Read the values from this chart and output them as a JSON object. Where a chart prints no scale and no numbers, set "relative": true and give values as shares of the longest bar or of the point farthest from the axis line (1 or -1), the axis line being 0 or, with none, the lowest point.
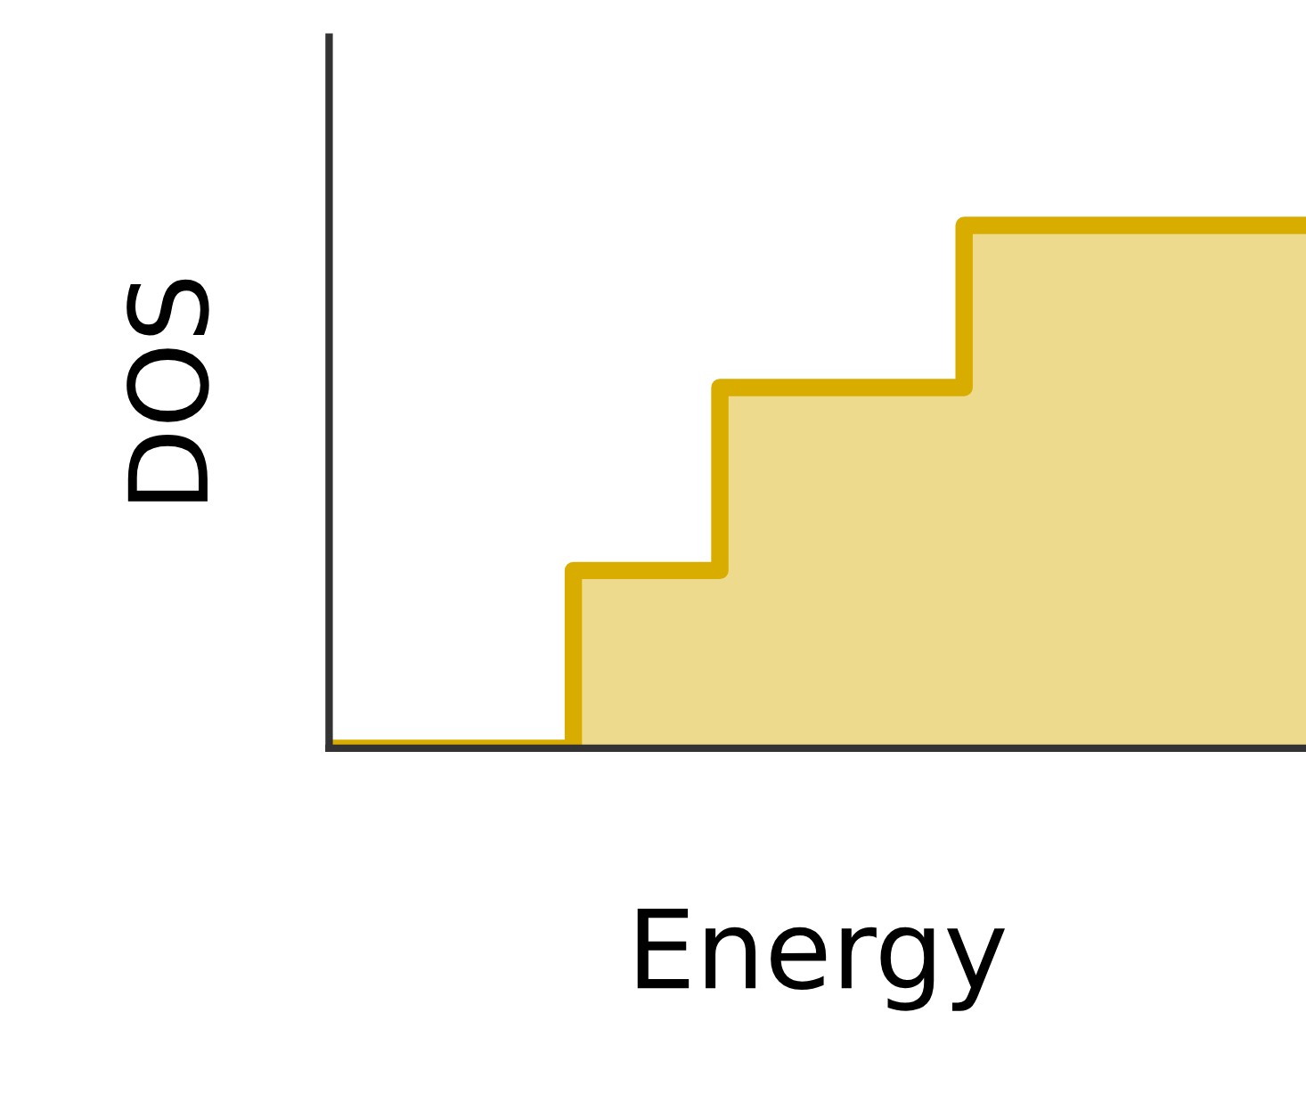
{
  "chart_data": {
    "type": "step",
    "xlabel": "Energy",
    "ylabel": "DOS",
    "relative": true,
    "categories": [
      null,
      null,
      null,
      null,
      null,
      null,
      null,
      null,
      null,
      null,
      null,
      null,
      null,
      null,
      null,
      null,
      null,
      null,
      null,
      null,
      null
    ],
    "series": [
      {
        "color": "#d9ac00",
        "values": [
          0,
          0,
          0,
          0,
          0,
          0.34,
          0.34,
          0.34,
          0.69,
          0.69,
          0.69,
          0.69,
          0.69,
          1,
          1,
          1,
          1,
          1,
          1,
          1,
          1
        ]
      }
    ]
  }
}
